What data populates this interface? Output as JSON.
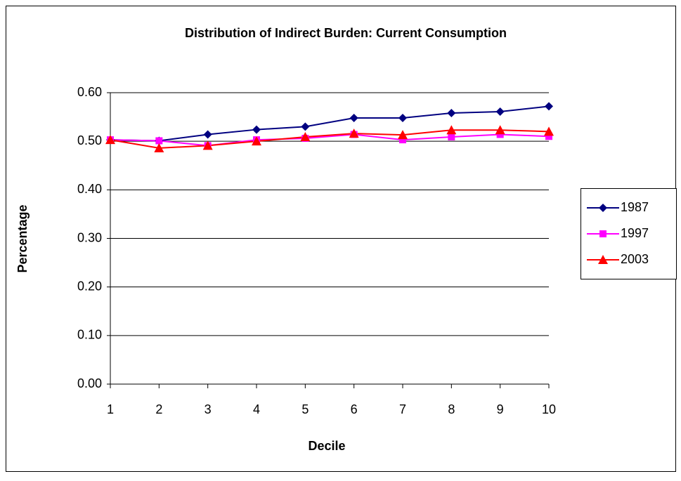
{
  "chart_data": {
    "type": "line",
    "title": "Distribution of Indirect Burden: Current Consumption",
    "x_label": "Decile",
    "y_label": "Percentage",
    "x": [
      1,
      2,
      3,
      4,
      5,
      6,
      7,
      8,
      9,
      10
    ],
    "xlim": [
      1,
      10
    ],
    "xticks": [
      1,
      2,
      3,
      4,
      5,
      6,
      7,
      8,
      9,
      10
    ],
    "ylim": [
      0,
      0.6
    ],
    "yticks": [
      {
        "value": 0,
        "label": "0.00"
      },
      {
        "value": 0.1,
        "label": "0.10"
      },
      {
        "value": 0.2,
        "label": "0.20"
      },
      {
        "value": 0.3,
        "label": "0.30"
      },
      {
        "value": 0.4,
        "label": "0.40"
      },
      {
        "value": 0.5,
        "label": "0.50"
      },
      {
        "value": 0.6,
        "label": "0.60"
      }
    ],
    "grid": true,
    "legend": "right",
    "series": [
      {
        "name": "1987",
        "color": "#000080",
        "marker": "diamond",
        "values": [
          0.503,
          0.501,
          0.514,
          0.524,
          0.53,
          0.548,
          0.548,
          0.558,
          0.561,
          0.572
        ]
      },
      {
        "name": "1997",
        "color": "#FF00FF",
        "marker": "square",
        "values": [
          0.503,
          0.501,
          0.491,
          0.503,
          0.506,
          0.514,
          0.503,
          0.509,
          0.514,
          0.51
        ]
      },
      {
        "name": "2003",
        "color": "#FF0000",
        "marker": "triangle",
        "values": [
          0.503,
          0.486,
          0.491,
          0.5,
          0.509,
          0.516,
          0.513,
          0.523,
          0.523,
          0.52
        ]
      }
    ]
  }
}
